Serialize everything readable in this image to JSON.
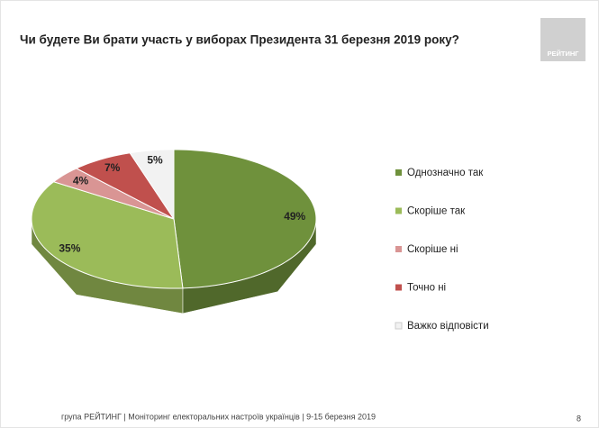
{
  "chart_data": {
    "type": "pie3d",
    "title": "Чи будете Ви брати участь у виборах Президента 31 березня 2019 року?",
    "categories": [
      "Однозначно так",
      "Скоріше  так",
      "Скоріше  ні",
      "Точно ні",
      "Важко відповісти"
    ],
    "values": [
      49,
      35,
      4,
      7,
      5
    ],
    "value_labels": [
      "49%",
      "35%",
      "4%",
      "7%",
      "5%"
    ],
    "colors": [
      "#6f913c",
      "#9bbb59",
      "#d99594",
      "#c0504d",
      "#f2f2f2"
    ],
    "legend": "right"
  },
  "logo": "РЕЙТИНГ",
  "footer": "група РЕЙТИНГ | Моніторинг електоральних настроїв українців  | 9-15 березня 2019",
  "page_number": "8"
}
